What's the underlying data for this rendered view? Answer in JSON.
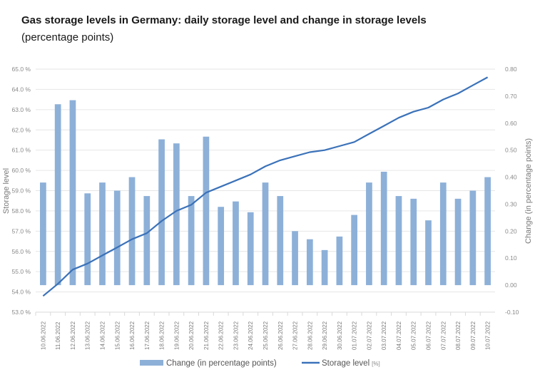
{
  "chart_data": {
    "type": "bar+line",
    "title": "Gas storage levels in Germany: daily storage level and change in storage levels",
    "subtitle": "(percentage points)",
    "categories": [
      "10.06.2022",
      "11.06.2022",
      "12.06.2022",
      "13.06.2022",
      "14.06.2022",
      "15.06.2022",
      "16.06.2022",
      "17.06.2022",
      "18.06.2022",
      "19.06.2022",
      "20.06.2022",
      "21.06.2022",
      "22.06.2022",
      "23.06.2022",
      "24.06.2022",
      "25.06.2022",
      "26.06.2022",
      "27.06.2022",
      "28.06.2022",
      "29.06.2022",
      "30.06.2022",
      "01.07.2022",
      "02.07.2022",
      "03.07.2022",
      "04.07.2022",
      "05.07.2022",
      "06.07.2022",
      "07.07.2022",
      "08.07.2022",
      "09.07.2022",
      "10.07.2022"
    ],
    "series": [
      {
        "name": "Change (in percentage points)",
        "type": "bar",
        "axis": "right",
        "color": "#8db0d8",
        "values": [
          0.38,
          0.67,
          0.685,
          0.34,
          0.38,
          0.35,
          0.4,
          0.33,
          0.54,
          0.525,
          0.33,
          0.55,
          0.29,
          0.31,
          0.27,
          0.38,
          0.33,
          0.2,
          0.17,
          0.13,
          0.18,
          0.26,
          0.38,
          0.42,
          0.33,
          0.32,
          0.24,
          0.38,
          0.32,
          0.35,
          0.4
        ]
      },
      {
        "name": "Storage level",
        "unit": "[%]",
        "type": "line",
        "axis": "left",
        "color": "#3b72b9",
        "values": [
          53.8,
          54.4,
          55.1,
          55.4,
          55.8,
          56.2,
          56.6,
          56.9,
          57.5,
          58.0,
          58.3,
          58.9,
          59.2,
          59.5,
          59.8,
          60.2,
          60.5,
          60.7,
          60.9,
          61.0,
          61.2,
          61.4,
          61.8,
          62.2,
          62.6,
          62.9,
          63.1,
          63.5,
          63.8,
          64.2,
          64.6
        ]
      }
    ],
    "ylabel_left": "Storage level",
    "ylabel_right": "Change (in percentage points)",
    "ylim_left": [
      53.0,
      65.0
    ],
    "ylim_right": [
      -0.1,
      0.8
    ],
    "yticks_left": [
      "53.0 %",
      "54.0 %",
      "55.0 %",
      "56.0 %",
      "57.0 %",
      "58.0 %",
      "59.0 %",
      "60.0 %",
      "61.0 %",
      "62.0 %",
      "63.0 %",
      "64.0 %",
      "65.0 %"
    ],
    "yticks_right": [
      "-0.10",
      "0.00",
      "0.10",
      "0.20",
      "0.30",
      "0.40",
      "0.50",
      "0.60",
      "0.70",
      "0.80"
    ],
    "grid": true,
    "legend_position": "bottom"
  }
}
